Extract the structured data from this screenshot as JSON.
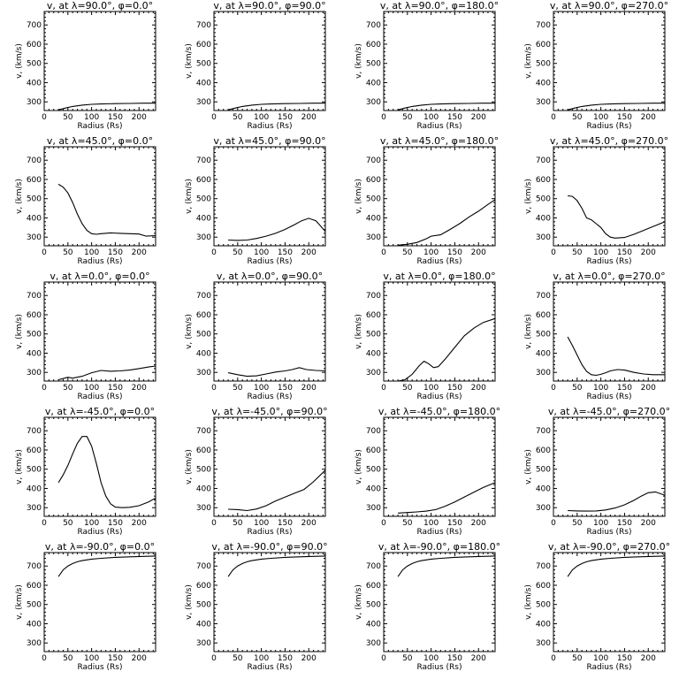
{
  "chart_data": [
    {
      "type": "line",
      "title": "v, at λ=90.0°, φ=0.0°",
      "xlabel": "Radius (Rs)",
      "ylabel": "v, (km/s)",
      "xlim": [
        0,
        235
      ],
      "ylim": [
        255,
        770
      ],
      "xticks": [
        0,
        50,
        100,
        150,
        200
      ],
      "yticks": [
        300,
        400,
        500,
        600,
        700
      ],
      "grid": false,
      "series": [
        {
          "x": [
            30,
            45,
            60,
            80,
            100,
            120,
            150,
            180,
            210,
            235
          ],
          "y": [
            258,
            268,
            276,
            283,
            287,
            289,
            291,
            292,
            293,
            293
          ]
        }
      ]
    },
    {
      "type": "line",
      "title": "v, at λ=90.0°, φ=90.0°",
      "xlabel": "Radius (Rs)",
      "ylabel": "v, (km/s)",
      "xlim": [
        0,
        235
      ],
      "ylim": [
        255,
        770
      ],
      "xticks": [
        0,
        50,
        100,
        150,
        200
      ],
      "yticks": [
        300,
        400,
        500,
        600,
        700
      ],
      "grid": false,
      "series": [
        {
          "x": [
            30,
            45,
            60,
            80,
            100,
            120,
            150,
            180,
            210,
            235
          ],
          "y": [
            258,
            268,
            276,
            283,
            287,
            289,
            291,
            292,
            293,
            293
          ]
        }
      ]
    },
    {
      "type": "line",
      "title": "v, at λ=90.0°, φ=180.0°",
      "xlabel": "Radius (Rs)",
      "ylabel": "v, (km/s)",
      "xlim": [
        0,
        235
      ],
      "ylim": [
        255,
        770
      ],
      "xticks": [
        0,
        50,
        100,
        150,
        200
      ],
      "yticks": [
        300,
        400,
        500,
        600,
        700
      ],
      "grid": false,
      "series": [
        {
          "x": [
            30,
            45,
            60,
            80,
            100,
            120,
            150,
            180,
            210,
            235
          ],
          "y": [
            258,
            268,
            276,
            283,
            287,
            289,
            291,
            292,
            293,
            293
          ]
        }
      ]
    },
    {
      "type": "line",
      "title": "v, at λ=90.0°, φ=270.0°",
      "xlabel": "Radius (Rs)",
      "ylabel": "v, (km/s)",
      "xlim": [
        0,
        235
      ],
      "ylim": [
        255,
        770
      ],
      "xticks": [
        0,
        50,
        100,
        150,
        200
      ],
      "yticks": [
        300,
        400,
        500,
        600,
        700
      ],
      "grid": false,
      "series": [
        {
          "x": [
            30,
            45,
            60,
            80,
            100,
            120,
            150,
            180,
            210,
            235
          ],
          "y": [
            258,
            268,
            276,
            283,
            287,
            289,
            291,
            292,
            293,
            293
          ]
        }
      ]
    },
    {
      "type": "line",
      "title": "v, at λ=45.0°, φ=0.0°",
      "xlabel": "Radius (Rs)",
      "ylabel": "v, (km/s)",
      "xlim": [
        0,
        235
      ],
      "ylim": [
        255,
        770
      ],
      "xticks": [
        0,
        50,
        100,
        150,
        200
      ],
      "yticks": [
        300,
        400,
        500,
        600,
        700
      ],
      "grid": false,
      "series": [
        {
          "x": [
            30,
            40,
            50,
            60,
            70,
            80,
            90,
            100,
            110,
            120,
            140,
            160,
            180,
            200,
            215,
            235
          ],
          "y": [
            575,
            560,
            530,
            480,
            420,
            370,
            335,
            318,
            315,
            318,
            322,
            320,
            318,
            316,
            305,
            308
          ]
        }
      ]
    },
    {
      "type": "line",
      "title": "v, at λ=45.0°, φ=90.0°",
      "xlabel": "Radius (Rs)",
      "ylabel": "v, (km/s)",
      "xlim": [
        0,
        235
      ],
      "ylim": [
        255,
        770
      ],
      "xticks": [
        0,
        50,
        100,
        150,
        200
      ],
      "yticks": [
        300,
        400,
        500,
        600,
        700
      ],
      "grid": false,
      "series": [
        {
          "x": [
            30,
            50,
            70,
            90,
            110,
            130,
            150,
            170,
            185,
            200,
            215,
            235
          ],
          "y": [
            285,
            283,
            285,
            293,
            305,
            320,
            340,
            365,
            385,
            398,
            385,
            330
          ]
        }
      ]
    },
    {
      "type": "line",
      "title": "v, at λ=45.0°, φ=180.0°",
      "xlabel": "Radius (Rs)",
      "ylabel": "v, (km/s)",
      "xlim": [
        0,
        235
      ],
      "ylim": [
        255,
        770
      ],
      "xticks": [
        0,
        50,
        100,
        150,
        200
      ],
      "yticks": [
        300,
        400,
        500,
        600,
        700
      ],
      "grid": false,
      "series": [
        {
          "x": [
            30,
            50,
            70,
            90,
            100,
            120,
            140,
            160,
            180,
            200,
            220,
            235
          ],
          "y": [
            258,
            263,
            272,
            292,
            305,
            312,
            340,
            370,
            405,
            435,
            470,
            495
          ]
        }
      ]
    },
    {
      "type": "line",
      "title": "v, at λ=45.0°, φ=270.0°",
      "xlabel": "Radius (Rs)",
      "ylabel": "v, (km/s)",
      "xlim": [
        0,
        235
      ],
      "ylim": [
        255,
        770
      ],
      "xticks": [
        0,
        50,
        100,
        150,
        200
      ],
      "yticks": [
        300,
        400,
        500,
        600,
        700
      ],
      "grid": false,
      "series": [
        {
          "x": [
            30,
            40,
            50,
            60,
            70,
            80,
            90,
            100,
            110,
            120,
            130,
            150,
            170,
            190,
            210,
            235
          ],
          "y": [
            515,
            512,
            490,
            450,
            400,
            390,
            370,
            350,
            318,
            300,
            295,
            298,
            315,
            335,
            355,
            380
          ]
        }
      ]
    },
    {
      "type": "line",
      "title": "v, at λ=0.0°, φ=0.0°",
      "xlabel": "Radius (Rs)",
      "ylabel": "v, (km/s)",
      "xlim": [
        0,
        235
      ],
      "ylim": [
        255,
        770
      ],
      "xticks": [
        0,
        50,
        100,
        150,
        200
      ],
      "yticks": [
        300,
        400,
        500,
        600,
        700
      ],
      "grid": false,
      "series": [
        {
          "x": [
            30,
            40,
            50,
            60,
            80,
            100,
            120,
            140,
            160,
            180,
            200,
            220,
            235
          ],
          "y": [
            262,
            268,
            275,
            270,
            280,
            298,
            310,
            306,
            308,
            312,
            320,
            328,
            333
          ]
        }
      ]
    },
    {
      "type": "line",
      "title": "v, at λ=0.0°, φ=90.0°",
      "xlabel": "Radius (Rs)",
      "ylabel": "v, (km/s)",
      "xlim": [
        0,
        235
      ],
      "ylim": [
        255,
        770
      ],
      "xticks": [
        0,
        50,
        100,
        150,
        200
      ],
      "yticks": [
        300,
        400,
        500,
        600,
        700
      ],
      "grid": false,
      "series": [
        {
          "x": [
            30,
            50,
            70,
            90,
            110,
            130,
            150,
            165,
            180,
            195,
            215,
            235
          ],
          "y": [
            298,
            288,
            280,
            282,
            292,
            302,
            308,
            315,
            325,
            315,
            310,
            308
          ]
        }
      ]
    },
    {
      "type": "line",
      "title": "v, at λ=0.0°, φ=180.0°",
      "xlabel": "Radius (Rs)",
      "ylabel": "v, (km/s)",
      "xlim": [
        0,
        235
      ],
      "ylim": [
        255,
        770
      ],
      "xticks": [
        0,
        50,
        100,
        150,
        200
      ],
      "yticks": [
        300,
        400,
        500,
        600,
        700
      ],
      "grid": false,
      "series": [
        {
          "x": [
            30,
            45,
            60,
            75,
            85,
            95,
            105,
            115,
            130,
            150,
            170,
            190,
            210,
            235
          ],
          "y": [
            255,
            262,
            290,
            335,
            358,
            345,
            325,
            330,
            370,
            430,
            490,
            530,
            560,
            580
          ]
        }
      ]
    },
    {
      "type": "line",
      "title": "v, at λ=0.0°, φ=270.0°",
      "xlabel": "Radius (Rs)",
      "ylabel": "v, (km/s)",
      "xlim": [
        0,
        235
      ],
      "ylim": [
        255,
        770
      ],
      "xticks": [
        0,
        50,
        100,
        150,
        200
      ],
      "yticks": [
        300,
        400,
        500,
        600,
        700
      ],
      "grid": false,
      "series": [
        {
          "x": [
            30,
            40,
            50,
            60,
            70,
            80,
            90,
            100,
            110,
            120,
            135,
            150,
            170,
            190,
            210,
            235
          ],
          "y": [
            485,
            440,
            390,
            340,
            305,
            288,
            285,
            290,
            298,
            308,
            315,
            312,
            300,
            292,
            288,
            288
          ]
        }
      ]
    },
    {
      "type": "line",
      "title": "v, at λ=-45.0°, φ=0.0°",
      "xlabel": "Radius (Rs)",
      "ylabel": "v, (km/s)",
      "xlim": [
        0,
        235
      ],
      "ylim": [
        255,
        770
      ],
      "xticks": [
        0,
        50,
        100,
        150,
        200
      ],
      "yticks": [
        300,
        400,
        500,
        600,
        700
      ],
      "grid": false,
      "series": [
        {
          "x": [
            30,
            40,
            50,
            60,
            70,
            80,
            90,
            100,
            110,
            120,
            130,
            140,
            150,
            165,
            180,
            200,
            220,
            235
          ],
          "y": [
            430,
            470,
            520,
            580,
            635,
            670,
            670,
            620,
            530,
            430,
            360,
            320,
            303,
            300,
            302,
            310,
            330,
            350
          ]
        }
      ]
    },
    {
      "type": "line",
      "title": "v, at λ=-45.0°, φ=90.0°",
      "xlabel": "Radius (Rs)",
      "ylabel": "v, (km/s)",
      "xlim": [
        0,
        235
      ],
      "ylim": [
        255,
        770
      ],
      "xticks": [
        0,
        50,
        100,
        150,
        200
      ],
      "yticks": [
        300,
        400,
        500,
        600,
        700
      ],
      "grid": false,
      "series": [
        {
          "x": [
            30,
            50,
            70,
            90,
            110,
            130,
            150,
            170,
            190,
            210,
            235
          ],
          "y": [
            292,
            290,
            285,
            293,
            310,
            335,
            355,
            375,
            395,
            435,
            495
          ]
        }
      ]
    },
    {
      "type": "line",
      "title": "v, at λ=-45.0°, φ=180.0°",
      "xlabel": "Radius (Rs)",
      "ylabel": "v, (km/s)",
      "xlim": [
        0,
        235
      ],
      "ylim": [
        255,
        770
      ],
      "xticks": [
        0,
        50,
        100,
        150,
        200
      ],
      "yticks": [
        300,
        400,
        500,
        600,
        700
      ],
      "grid": false,
      "series": [
        {
          "x": [
            30,
            50,
            70,
            90,
            110,
            130,
            150,
            170,
            190,
            210,
            235
          ],
          "y": [
            272,
            275,
            278,
            282,
            290,
            308,
            330,
            355,
            380,
            405,
            430
          ]
        }
      ]
    },
    {
      "type": "line",
      "title": "v, at λ=-45.0°, φ=270.0°",
      "xlabel": "Radius (Rs)",
      "ylabel": "v, (km/s)",
      "xlim": [
        0,
        235
      ],
      "ylim": [
        255,
        770
      ],
      "xticks": [
        0,
        50,
        100,
        150,
        200
      ],
      "yticks": [
        300,
        400,
        500,
        600,
        700
      ],
      "grid": false,
      "series": [
        {
          "x": [
            30,
            50,
            70,
            90,
            110,
            130,
            150,
            170,
            185,
            200,
            215,
            235
          ],
          "y": [
            285,
            283,
            282,
            283,
            288,
            298,
            315,
            338,
            360,
            378,
            382,
            365
          ]
        }
      ]
    },
    {
      "type": "line",
      "title": "v, at λ=-90.0°, φ=0.0°",
      "xlabel": "Radius (Rs)",
      "ylabel": "v, (km/s)",
      "xlim": [
        0,
        235
      ],
      "ylim": [
        255,
        770
      ],
      "xticks": [
        0,
        50,
        100,
        150,
        200
      ],
      "yticks": [
        300,
        400,
        500,
        600,
        700
      ],
      "grid": false,
      "series": [
        {
          "x": [
            30,
            40,
            50,
            60,
            70,
            80,
            100,
            120,
            150,
            180,
            210,
            235
          ],
          "y": [
            645,
            680,
            700,
            713,
            722,
            728,
            736,
            740,
            745,
            748,
            750,
            752
          ]
        }
      ]
    },
    {
      "type": "line",
      "title": "v, at λ=-90.0°, φ=90.0°",
      "xlabel": "Radius (Rs)",
      "ylabel": "v, (km/s)",
      "xlim": [
        0,
        235
      ],
      "ylim": [
        255,
        770
      ],
      "xticks": [
        0,
        50,
        100,
        150,
        200
      ],
      "yticks": [
        300,
        400,
        500,
        600,
        700
      ],
      "grid": false,
      "series": [
        {
          "x": [
            30,
            40,
            50,
            60,
            70,
            80,
            100,
            120,
            150,
            180,
            210,
            235
          ],
          "y": [
            645,
            680,
            700,
            713,
            722,
            728,
            736,
            740,
            745,
            748,
            750,
            752
          ]
        }
      ]
    },
    {
      "type": "line",
      "title": "v, at λ=-90.0°, φ=180.0°",
      "xlabel": "Radius (Rs)",
      "ylabel": "v, (km/s)",
      "xlim": [
        0,
        235
      ],
      "ylim": [
        255,
        770
      ],
      "xticks": [
        0,
        50,
        100,
        150,
        200
      ],
      "yticks": [
        300,
        400,
        500,
        600,
        700
      ],
      "grid": false,
      "series": [
        {
          "x": [
            30,
            40,
            50,
            60,
            70,
            80,
            100,
            120,
            150,
            180,
            210,
            235
          ],
          "y": [
            645,
            680,
            700,
            713,
            722,
            728,
            736,
            740,
            745,
            748,
            750,
            752
          ]
        }
      ]
    },
    {
      "type": "line",
      "title": "v, at λ=-90.0°, φ=270.0°",
      "xlabel": "Radius (Rs)",
      "ylabel": "v, (km/s)",
      "xlim": [
        0,
        235
      ],
      "ylim": [
        255,
        770
      ],
      "xticks": [
        0,
        50,
        100,
        150,
        200
      ],
      "yticks": [
        300,
        400,
        500,
        600,
        700
      ],
      "grid": false,
      "series": [
        {
          "x": [
            30,
            40,
            50,
            60,
            70,
            80,
            100,
            120,
            150,
            180,
            210,
            235
          ],
          "y": [
            645,
            680,
            700,
            713,
            722,
            728,
            736,
            740,
            745,
            748,
            750,
            752
          ]
        }
      ]
    }
  ]
}
